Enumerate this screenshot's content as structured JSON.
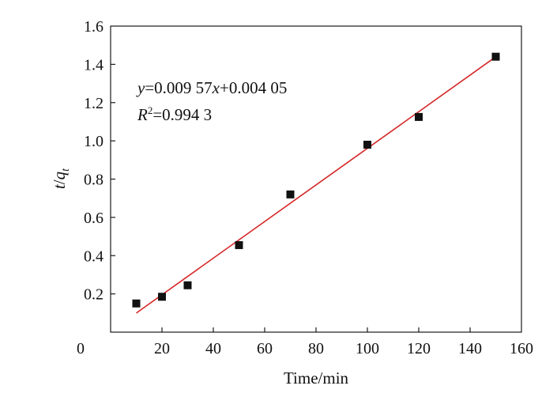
{
  "chart_data": {
    "type": "scatter",
    "xlabel": "Time/min",
    "ylabel": {
      "t": "t",
      "slash": "/",
      "q": "q",
      "sub": "t"
    },
    "xlim": [
      0,
      160
    ],
    "ylim": [
      0,
      1.6
    ],
    "xticks": [
      0,
      20,
      40,
      60,
      80,
      100,
      120,
      140,
      160
    ],
    "xtick_labels": [
      "0",
      "20",
      "40",
      "60",
      "80",
      "100",
      "120",
      "140",
      "160"
    ],
    "yticks": [
      0.2,
      0.4,
      0.6,
      0.8,
      1.0,
      1.2,
      1.4,
      1.6
    ],
    "ytick_labels": [
      "0.2",
      "0.4",
      "0.6",
      "0.8",
      "1.0",
      "1.2",
      "1.4",
      "1.6"
    ],
    "grid": false,
    "series": [
      {
        "x": [
          10,
          20,
          30,
          50,
          70,
          100,
          120,
          150
        ],
        "y": [
          0.15,
          0.185,
          0.245,
          0.455,
          0.72,
          0.98,
          1.125,
          1.44
        ],
        "color": "#111111",
        "marker": "square"
      }
    ],
    "fit_line": {
      "slope": 0.00957,
      "intercept": 0.00405,
      "x_range": [
        10,
        150
      ],
      "color": "#d62728"
    },
    "annotations": {
      "equation": {
        "y": "y",
        "eq_mid": "=0.009 57",
        "x": "x",
        "eq_end": "+0.004 05"
      },
      "r2": {
        "r": "R",
        "sup": "2",
        "value": "=0.994 3"
      }
    }
  }
}
